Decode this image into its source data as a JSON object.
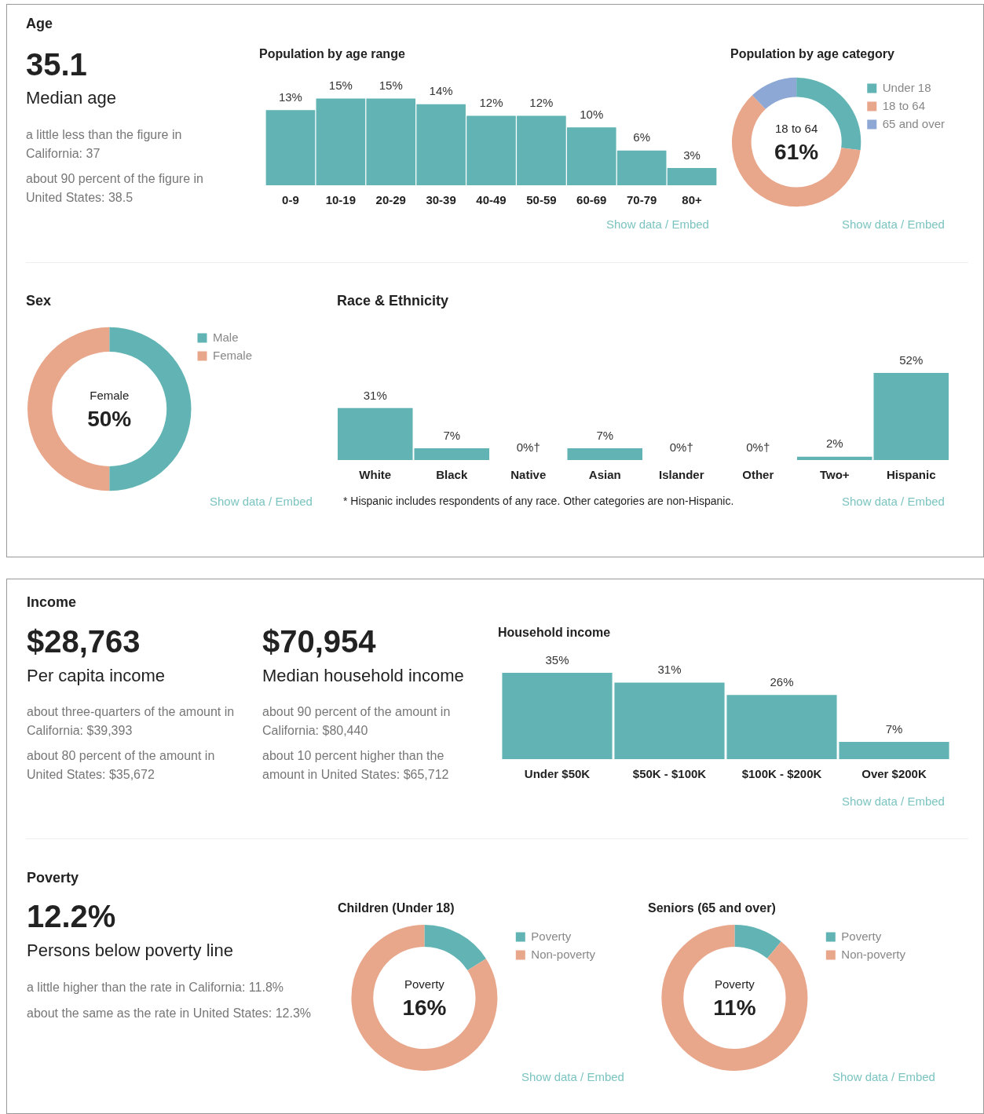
{
  "chart_data": [
    {
      "type": "other",
      "title": "Age",
      "annotations": [
        "35.1",
        "Median age",
        "a little less than the figure in California: 37",
        "about 90 percent of the figure in United States: 38.5"
      ]
    },
    {
      "type": "bar",
      "title": "Population by age range",
      "categories": [
        "0-9",
        "10-19",
        "20-29",
        "30-39",
        "40-49",
        "50-59",
        "60-69",
        "70-79",
        "80+"
      ],
      "values": [
        13,
        15,
        15,
        14,
        12,
        12,
        10,
        6,
        3
      ],
      "value_labels": [
        "13%",
        "15%",
        "15%",
        "14%",
        "12%",
        "12%",
        "10%",
        "6%",
        "3%"
      ],
      "color": "#62b3b3",
      "annotations": [
        "Show data / Embed"
      ]
    },
    {
      "type": "donut",
      "title": "Population by age category",
      "categories": [
        "Under 18",
        "18 to 64",
        "65 and over"
      ],
      "values": [
        27,
        61,
        12
      ],
      "colors": [
        "#62b3b3",
        "#e8a68b",
        "#8ea8d6"
      ],
      "legend": "top right",
      "annotations": [
        "18 to 64",
        "61%",
        "Show data / Embed"
      ]
    },
    {
      "type": "donut",
      "title": "Sex",
      "categories": [
        "Male",
        "Female"
      ],
      "values": [
        50,
        50
      ],
      "colors": [
        "#62b3b3",
        "#e8a68b"
      ],
      "legend": "top right",
      "annotations": [
        "Female",
        "50%",
        "Show data / Embed"
      ]
    },
    {
      "type": "bar",
      "title": "Race & Ethnicity",
      "categories": [
        "White",
        "Black",
        "Native",
        "Asian",
        "Islander",
        "Other",
        "Two+",
        "Hispanic"
      ],
      "values": [
        31,
        7,
        0,
        7,
        0,
        0,
        2,
        52
      ],
      "value_labels": [
        "31%",
        "7%",
        "0%†",
        "7%",
        "0%†",
        "0%†",
        "2%",
        "52%"
      ],
      "color": "#62b3b3",
      "annotations": [
        "* Hispanic includes respondents of any race. Other categories are non-Hispanic.",
        "Show data / Embed"
      ]
    },
    {
      "type": "other",
      "title": "Income",
      "annotations": [
        "$28,763",
        "Per capita income",
        "about three-quarters of the amount in California: $39,393",
        "about 80 percent of the amount in United States: $35,672",
        "$70,954",
        "Median household income",
        "about 90 percent of the amount in California: $80,440",
        "about 10 percent higher than the amount in United States: $65,712"
      ]
    },
    {
      "type": "bar",
      "title": "Household income",
      "categories": [
        "Under $50K",
        "$50K - $100K",
        "$100K - $200K",
        "Over $200K"
      ],
      "values": [
        35,
        31,
        26,
        7
      ],
      "value_labels": [
        "35%",
        "31%",
        "26%",
        "7%"
      ],
      "color": "#62b3b3",
      "annotations": [
        "Show data / Embed"
      ]
    },
    {
      "type": "other",
      "title": "Poverty",
      "annotations": [
        "12.2%",
        "Persons below poverty line",
        "a little higher than the rate in California: 11.8%",
        "about the same as the rate in United States: 12.3%"
      ]
    },
    {
      "type": "donut",
      "title": "Children (Under 18)",
      "categories": [
        "Poverty",
        "Non-poverty"
      ],
      "values": [
        16,
        84
      ],
      "colors": [
        "#62b3b3",
        "#e8a68b"
      ],
      "legend": "top right",
      "annotations": [
        "Poverty",
        "16%",
        "Show data / Embed"
      ]
    },
    {
      "type": "donut",
      "title": "Seniors (65 and over)",
      "categories": [
        "Poverty",
        "Non-poverty"
      ],
      "values": [
        11,
        89
      ],
      "colors": [
        "#62b3b3",
        "#e8a68b"
      ],
      "legend": "top right",
      "annotations": [
        "Poverty",
        "11%",
        "Show data / Embed"
      ]
    }
  ]
}
